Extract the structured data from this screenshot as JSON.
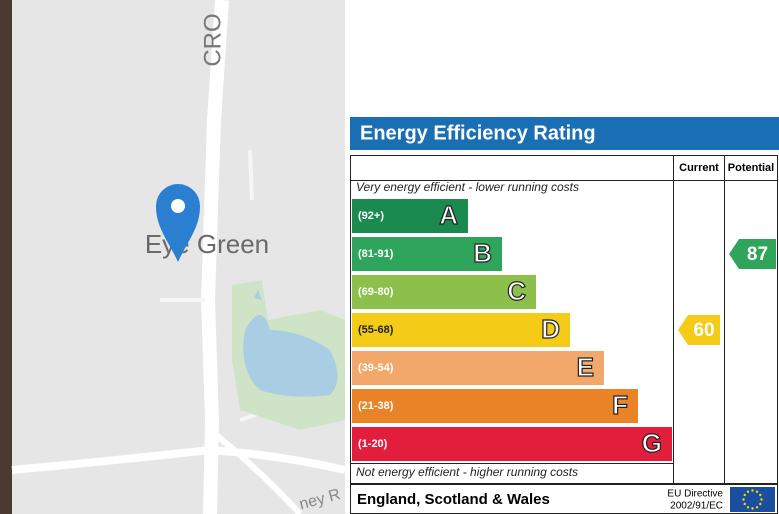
{
  "map": {
    "labels": [
      "CRO",
      "Eye Green",
      "ney R"
    ]
  },
  "epc": {
    "title": "Energy Efficiency Rating",
    "headers": [
      "Current",
      "Potential"
    ],
    "top_note": "Very energy efficient - lower running costs",
    "bottom_note": "Not energy efficient - higher running costs",
    "bands": [
      {
        "range": "(92+)",
        "letter": "A",
        "color": "#1a8a4f"
      },
      {
        "range": "(81-91)",
        "letter": "B",
        "color": "#2ea55a"
      },
      {
        "range": "(69-80)",
        "letter": "C",
        "color": "#8cc04a"
      },
      {
        "range": "(55-68)",
        "letter": "D",
        "color": "#f4cb17"
      },
      {
        "range": "(39-54)",
        "letter": "E",
        "color": "#f2a86a"
      },
      {
        "range": "(21-38)",
        "letter": "F",
        "color": "#ea8227"
      },
      {
        "range": "(1-20)",
        "letter": "G",
        "color": "#e21e3c"
      }
    ],
    "current": 60,
    "potential": 87,
    "footer": "England, Scotland & Wales",
    "directive": [
      "EU Directive",
      "2002/91/EC"
    ]
  }
}
